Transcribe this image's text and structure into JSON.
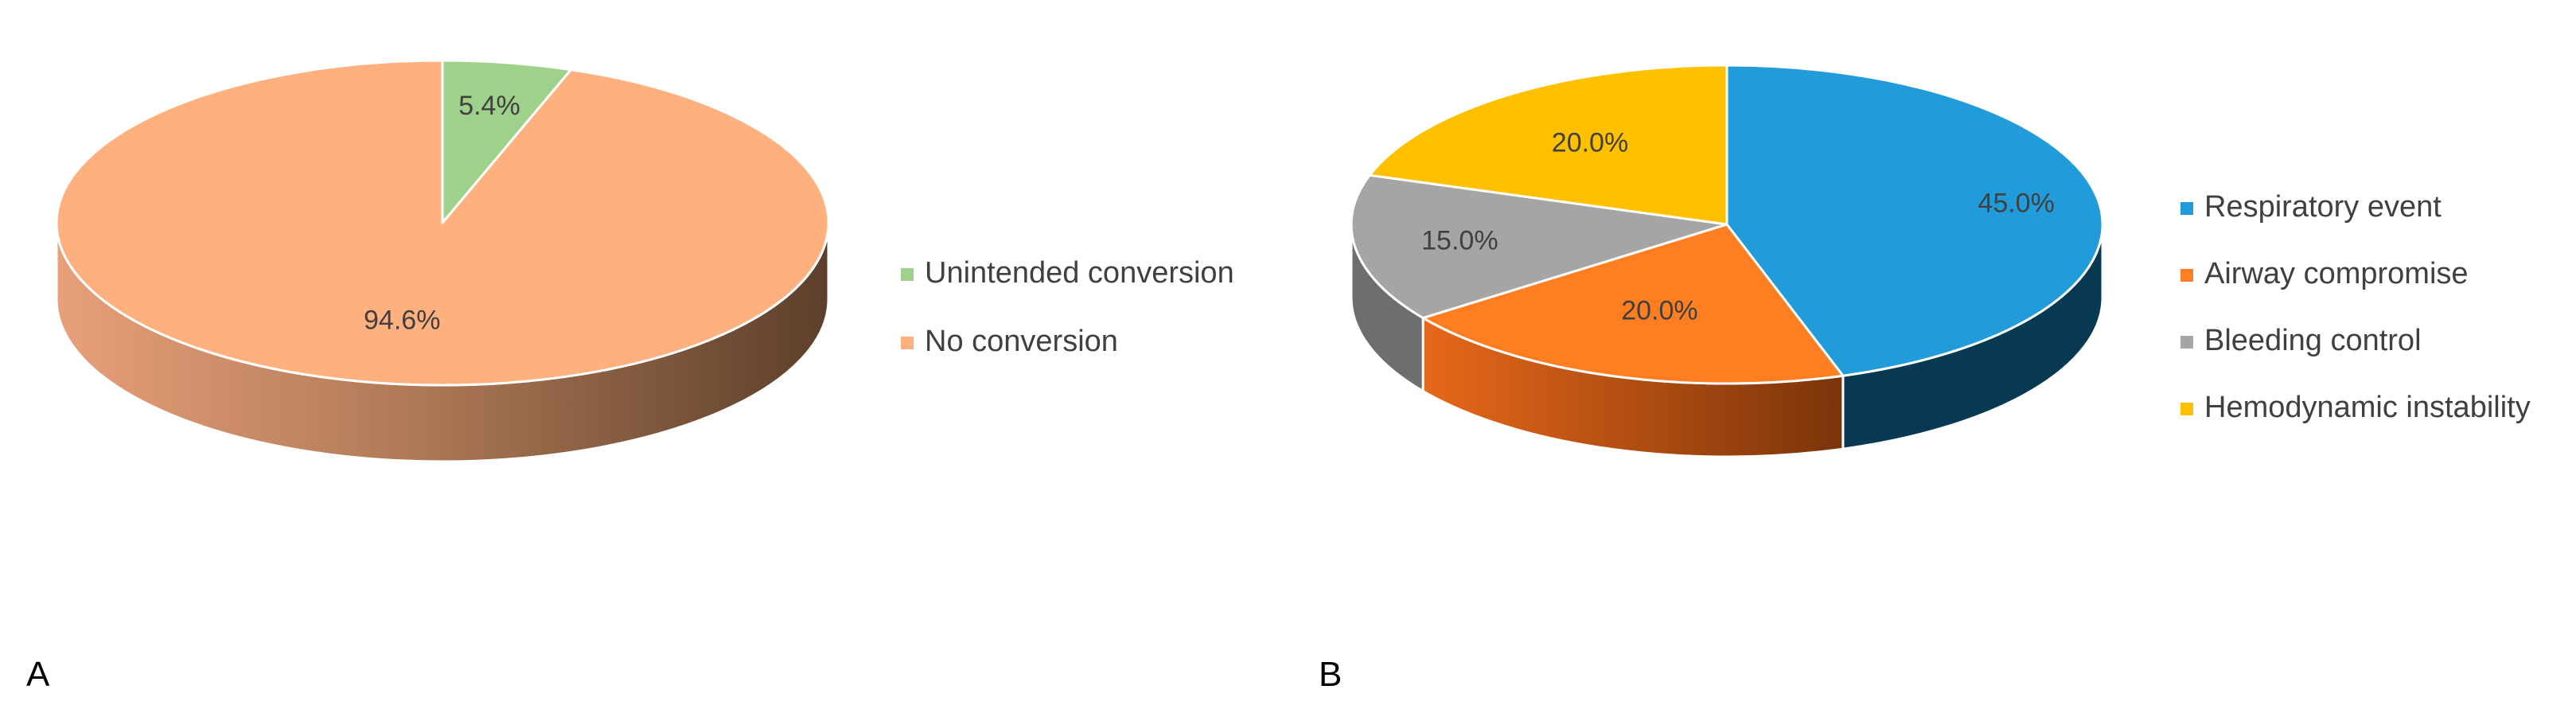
{
  "chart_data": [
    {
      "type": "pie",
      "panel_label": "A",
      "values": [
        5.4,
        94.6
      ],
      "labels": [
        "Unintended conversion",
        "No conversion"
      ],
      "value_labels": [
        "5.4%",
        "94.6%"
      ],
      "colors": [
        "#9ED28A",
        "#FFB07F"
      ],
      "side_colors": [
        "#5F9E54",
        "#B06E4D"
      ],
      "style": "3d",
      "legend_position": "right"
    },
    {
      "type": "pie",
      "panel_label": "B",
      "values": [
        45.0,
        20.0,
        15.0,
        20.0
      ],
      "labels": [
        "Respiratory event",
        "Airway compromise",
        "Bleeding control",
        "Hemodynamic instability"
      ],
      "value_labels": [
        "45.0%",
        "20.0%",
        "15.0%",
        "20.0%"
      ],
      "colors": [
        "#219BD9",
        "#FF7E21",
        "#A5A5A5",
        "#FFC000"
      ],
      "side_colors": [
        "#073A52",
        "#9A4410",
        "#6E6E6E",
        "#A57A00"
      ],
      "style": "3d",
      "legend_position": "right"
    }
  ]
}
